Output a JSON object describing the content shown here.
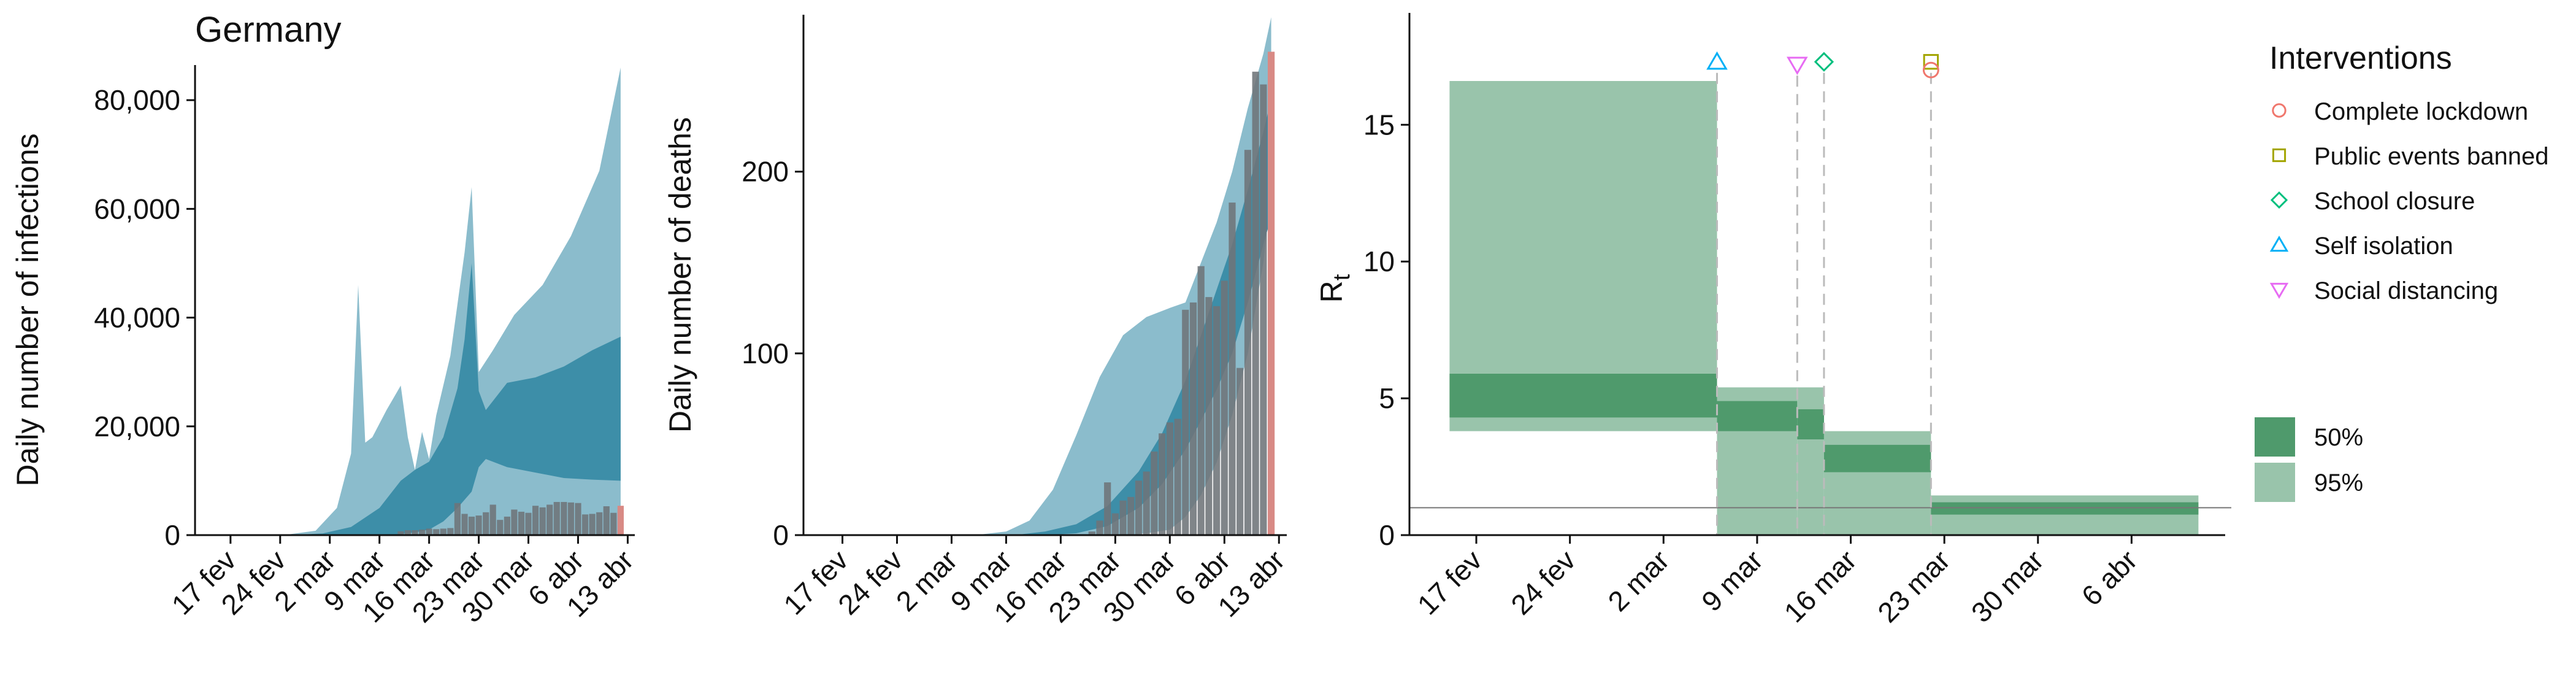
{
  "colors": {
    "band95_blue": "#8bbccc",
    "band50_blue": "#3d8ea8",
    "bar_gray": "#6e7479",
    "bar_red": "#d88a85",
    "band95_green": "#99c4ab",
    "band50_green": "#4f9a6c",
    "lockdown": "#f0776d",
    "public_events": "#a3a500",
    "school": "#00bf7d",
    "self_isolation": "#00b0f6",
    "social_distancing": "#e76bf3"
  },
  "chart_data": [
    {
      "type": "area",
      "title": "Germany",
      "ylabel": "Daily number of infections",
      "xlabel": "",
      "x_start": "2020-02-12",
      "x_end": "2020-04-14",
      "ylim": [
        0,
        86000
      ],
      "yticks": [
        0,
        20000,
        40000,
        60000,
        80000
      ],
      "ytick_labels": [
        "0",
        "20,000",
        "40,000",
        "60,000",
        "80,000"
      ],
      "xticks": [
        "2020-02-17",
        "2020-02-24",
        "2020-03-02",
        "2020-03-09",
        "2020-03-16",
        "2020-03-23",
        "2020-03-30",
        "2020-04-06",
        "2020-04-13"
      ],
      "xtick_labels": [
        "17 fev",
        "24 fev",
        "2 mar",
        "9 mar",
        "16 mar",
        "23 mar",
        "30 mar",
        "6 abr",
        "13 abr"
      ],
      "ci95": {
        "dates": [
          "2020-02-18",
          "2020-02-25",
          "2020-02-29",
          "2020-03-03",
          "2020-03-05",
          "2020-03-06",
          "2020-03-07",
          "2020-03-08",
          "2020-03-10",
          "2020-03-12",
          "2020-03-13",
          "2020-03-14",
          "2020-03-15",
          "2020-03-16",
          "2020-03-17",
          "2020-03-19",
          "2020-03-21",
          "2020-03-22",
          "2020-03-23",
          "2020-03-25",
          "2020-03-28",
          "2020-04-01",
          "2020-04-05",
          "2020-04-09",
          "2020-04-12"
        ],
        "upper": [
          0,
          100,
          800,
          5000,
          15000,
          46000,
          17000,
          18000,
          23000,
          27500,
          18000,
          12000,
          19000,
          14000,
          22000,
          33000,
          52000,
          64000,
          30000,
          34000,
          40500,
          46000,
          55000,
          67000,
          86000
        ],
        "lower": [
          0,
          0,
          0,
          0,
          0,
          0,
          0,
          0,
          0,
          0,
          0,
          0,
          0,
          0,
          0,
          0,
          0,
          0,
          0,
          0,
          0,
          0,
          0,
          0,
          0
        ]
      },
      "ci50": {
        "dates": [
          "2020-02-25",
          "2020-03-01",
          "2020-03-05",
          "2020-03-09",
          "2020-03-12",
          "2020-03-14",
          "2020-03-16",
          "2020-03-18",
          "2020-03-20",
          "2020-03-21",
          "2020-03-22",
          "2020-03-23",
          "2020-03-24",
          "2020-03-27",
          "2020-03-31",
          "2020-04-04",
          "2020-04-08",
          "2020-04-12"
        ],
        "upper": [
          0,
          300,
          1500,
          5000,
          10000,
          12000,
          13500,
          18000,
          27000,
          36000,
          50000,
          26500,
          23000,
          28000,
          29000,
          31000,
          34000,
          36500
        ],
        "lower": [
          0,
          0,
          0,
          0,
          200,
          500,
          1000,
          2500,
          5000,
          6500,
          8000,
          12500,
          14000,
          12500,
          11500,
          10500,
          10200,
          10000
        ]
      },
      "bars": {
        "dates": [
          "2020-03-12",
          "2020-03-13",
          "2020-03-14",
          "2020-03-15",
          "2020-03-16",
          "2020-03-17",
          "2020-03-18",
          "2020-03-19",
          "2020-03-20",
          "2020-03-21",
          "2020-03-22",
          "2020-03-23",
          "2020-03-24",
          "2020-03-25",
          "2020-03-26",
          "2020-03-27",
          "2020-03-28",
          "2020-03-29",
          "2020-03-30",
          "2020-03-31",
          "2020-04-01",
          "2020-04-02",
          "2020-04-03",
          "2020-04-04",
          "2020-04-05",
          "2020-04-06",
          "2020-04-07",
          "2020-04-08",
          "2020-04-09",
          "2020-04-10",
          "2020-04-11",
          "2020-04-12"
        ],
        "values": [
          700,
          900,
          900,
          1000,
          1200,
          1100,
          1200,
          1300,
          5900,
          3900,
          3400,
          3600,
          4200,
          5600,
          2800,
          3400,
          4700,
          4300,
          4100,
          5400,
          5100,
          5600,
          6100,
          6100,
          6000,
          5900,
          3800,
          3900,
          4200,
          5300,
          4100,
          5400
        ],
        "last_highlighted": true
      }
    },
    {
      "type": "area",
      "title": "",
      "ylabel": "Daily number of deaths",
      "xlabel": "",
      "x_start": "2020-02-12",
      "x_end": "2020-04-14",
      "ylim": [
        0,
        285
      ],
      "yticks": [
        0,
        100,
        200
      ],
      "ytick_labels": [
        "0",
        "100",
        "200"
      ],
      "xticks": [
        "2020-02-17",
        "2020-02-24",
        "2020-03-02",
        "2020-03-09",
        "2020-03-16",
        "2020-03-23",
        "2020-03-30",
        "2020-04-06",
        "2020-04-13"
      ],
      "xtick_labels": [
        "17 fev",
        "24 fev",
        "2 mar",
        "9 mar",
        "16 mar",
        "23 mar",
        "30 mar",
        "6 abr",
        "13 abr"
      ],
      "ci95": {
        "dates": [
          "2020-03-05",
          "2020-03-09",
          "2020-03-12",
          "2020-03-15",
          "2020-03-18",
          "2020-03-21",
          "2020-03-24",
          "2020-03-27",
          "2020-03-30",
          "2020-04-01",
          "2020-04-03",
          "2020-04-05",
          "2020-04-07",
          "2020-04-09",
          "2020-04-11",
          "2020-04-12"
        ],
        "upper": [
          0,
          2,
          8,
          25,
          55,
          87,
          110,
          120,
          125,
          128,
          150,
          172,
          200,
          235,
          265,
          285
        ],
        "lower": [
          0,
          0,
          0,
          0,
          0,
          0,
          0,
          1,
          3,
          10,
          22,
          40,
          66,
          100,
          150,
          190
        ]
      },
      "ci50": {
        "dates": [
          "2020-03-10",
          "2020-03-14",
          "2020-03-18",
          "2020-03-22",
          "2020-03-26",
          "2020-03-29",
          "2020-04-01",
          "2020-04-03",
          "2020-04-05",
          "2020-04-07",
          "2020-04-09",
          "2020-04-11",
          "2020-04-12"
        ],
        "upper": [
          0,
          2,
          6,
          16,
          35,
          56,
          85,
          110,
          135,
          160,
          190,
          222,
          240
        ],
        "lower": [
          0,
          0,
          1,
          5,
          15,
          28,
          47,
          63,
          80,
          100,
          128,
          160,
          175
        ]
      },
      "bars": {
        "dates": [
          "2020-03-20",
          "2020-03-21",
          "2020-03-22",
          "2020-03-23",
          "2020-03-24",
          "2020-03-25",
          "2020-03-26",
          "2020-03-27",
          "2020-03-28",
          "2020-03-29",
          "2020-03-30",
          "2020-03-31",
          "2020-04-01",
          "2020-04-02",
          "2020-04-03",
          "2020-04-04",
          "2020-04-05",
          "2020-04-06",
          "2020-04-07",
          "2020-04-08",
          "2020-04-09",
          "2020-04-10",
          "2020-04-11",
          "2020-04-12"
        ],
        "values": [
          2,
          8,
          29,
          12,
          19,
          21,
          30,
          35,
          46,
          56,
          62,
          64,
          124,
          128,
          148,
          131,
          126,
          140,
          183,
          92,
          212,
          255,
          248,
          266
        ],
        "last_highlighted": true
      }
    },
    {
      "type": "area",
      "title": "",
      "ylabel": "Rt",
      "xlabel": "",
      "x_start": "2020-02-12",
      "x_end": "2020-04-13",
      "ylim": [
        0,
        19
      ],
      "yticks": [
        0,
        5,
        10,
        15
      ],
      "ytick_labels": [
        "0",
        "5",
        "10",
        "15"
      ],
      "xticks": [
        "2020-02-17",
        "2020-02-24",
        "2020-03-02",
        "2020-03-09",
        "2020-03-16",
        "2020-03-23",
        "2020-03-30",
        "2020-04-06"
      ],
      "xtick_labels": [
        "17 fev",
        "24 fev",
        "2 mar",
        "9 mar",
        "16 mar",
        "23 mar",
        "30 mar",
        "6 abr"
      ],
      "reference_line": 1,
      "segments": [
        {
          "start": "2020-02-15",
          "end": "2020-03-06",
          "ci95": [
            3.8,
            16.6
          ],
          "ci50": [
            4.3,
            5.9
          ]
        },
        {
          "start": "2020-03-06",
          "end": "2020-03-12",
          "ci95": [
            0,
            5.4
          ],
          "ci50": [
            3.8,
            4.9
          ]
        },
        {
          "start": "2020-03-12",
          "end": "2020-03-14",
          "ci95": [
            0,
            5.4
          ],
          "ci50": [
            3.5,
            4.6
          ]
        },
        {
          "start": "2020-03-14",
          "end": "2020-03-22",
          "ci95": [
            0,
            3.8
          ],
          "ci50": [
            2.3,
            3.3
          ]
        },
        {
          "start": "2020-03-22",
          "end": "2020-04-11",
          "ci95": [
            0,
            1.45
          ],
          "ci50": [
            0.75,
            1.2
          ]
        }
      ],
      "interventions": [
        {
          "key": "self_isolation",
          "date": "2020-03-06",
          "y": 17.3,
          "shape": "triangle-up"
        },
        {
          "key": "social_distancing",
          "date": "2020-03-12",
          "y": 17.2,
          "shape": "triangle-down"
        },
        {
          "key": "school",
          "date": "2020-03-14",
          "y": 17.3,
          "shape": "diamond"
        },
        {
          "key": "public_events",
          "date": "2020-03-22",
          "y": 17.3,
          "shape": "square"
        },
        {
          "key": "lockdown",
          "date": "2020-03-22",
          "y": 17.0,
          "shape": "circle"
        }
      ]
    }
  ],
  "legend": {
    "interventions_title": "Interventions",
    "items": [
      {
        "key": "lockdown",
        "label": "Complete lockdown",
        "shape": "circle"
      },
      {
        "key": "public_events",
        "label": "Public events banned",
        "shape": "square"
      },
      {
        "key": "school",
        "label": "School closure",
        "shape": "diamond"
      },
      {
        "key": "self_isolation",
        "label": "Self isolation",
        "shape": "triangle-up"
      },
      {
        "key": "social_distancing",
        "label": "Social distancing",
        "shape": "triangle-down"
      }
    ],
    "bands": [
      {
        "label": "50%",
        "color_key": "band50_green"
      },
      {
        "label": "95%",
        "color_key": "band95_green"
      }
    ]
  }
}
